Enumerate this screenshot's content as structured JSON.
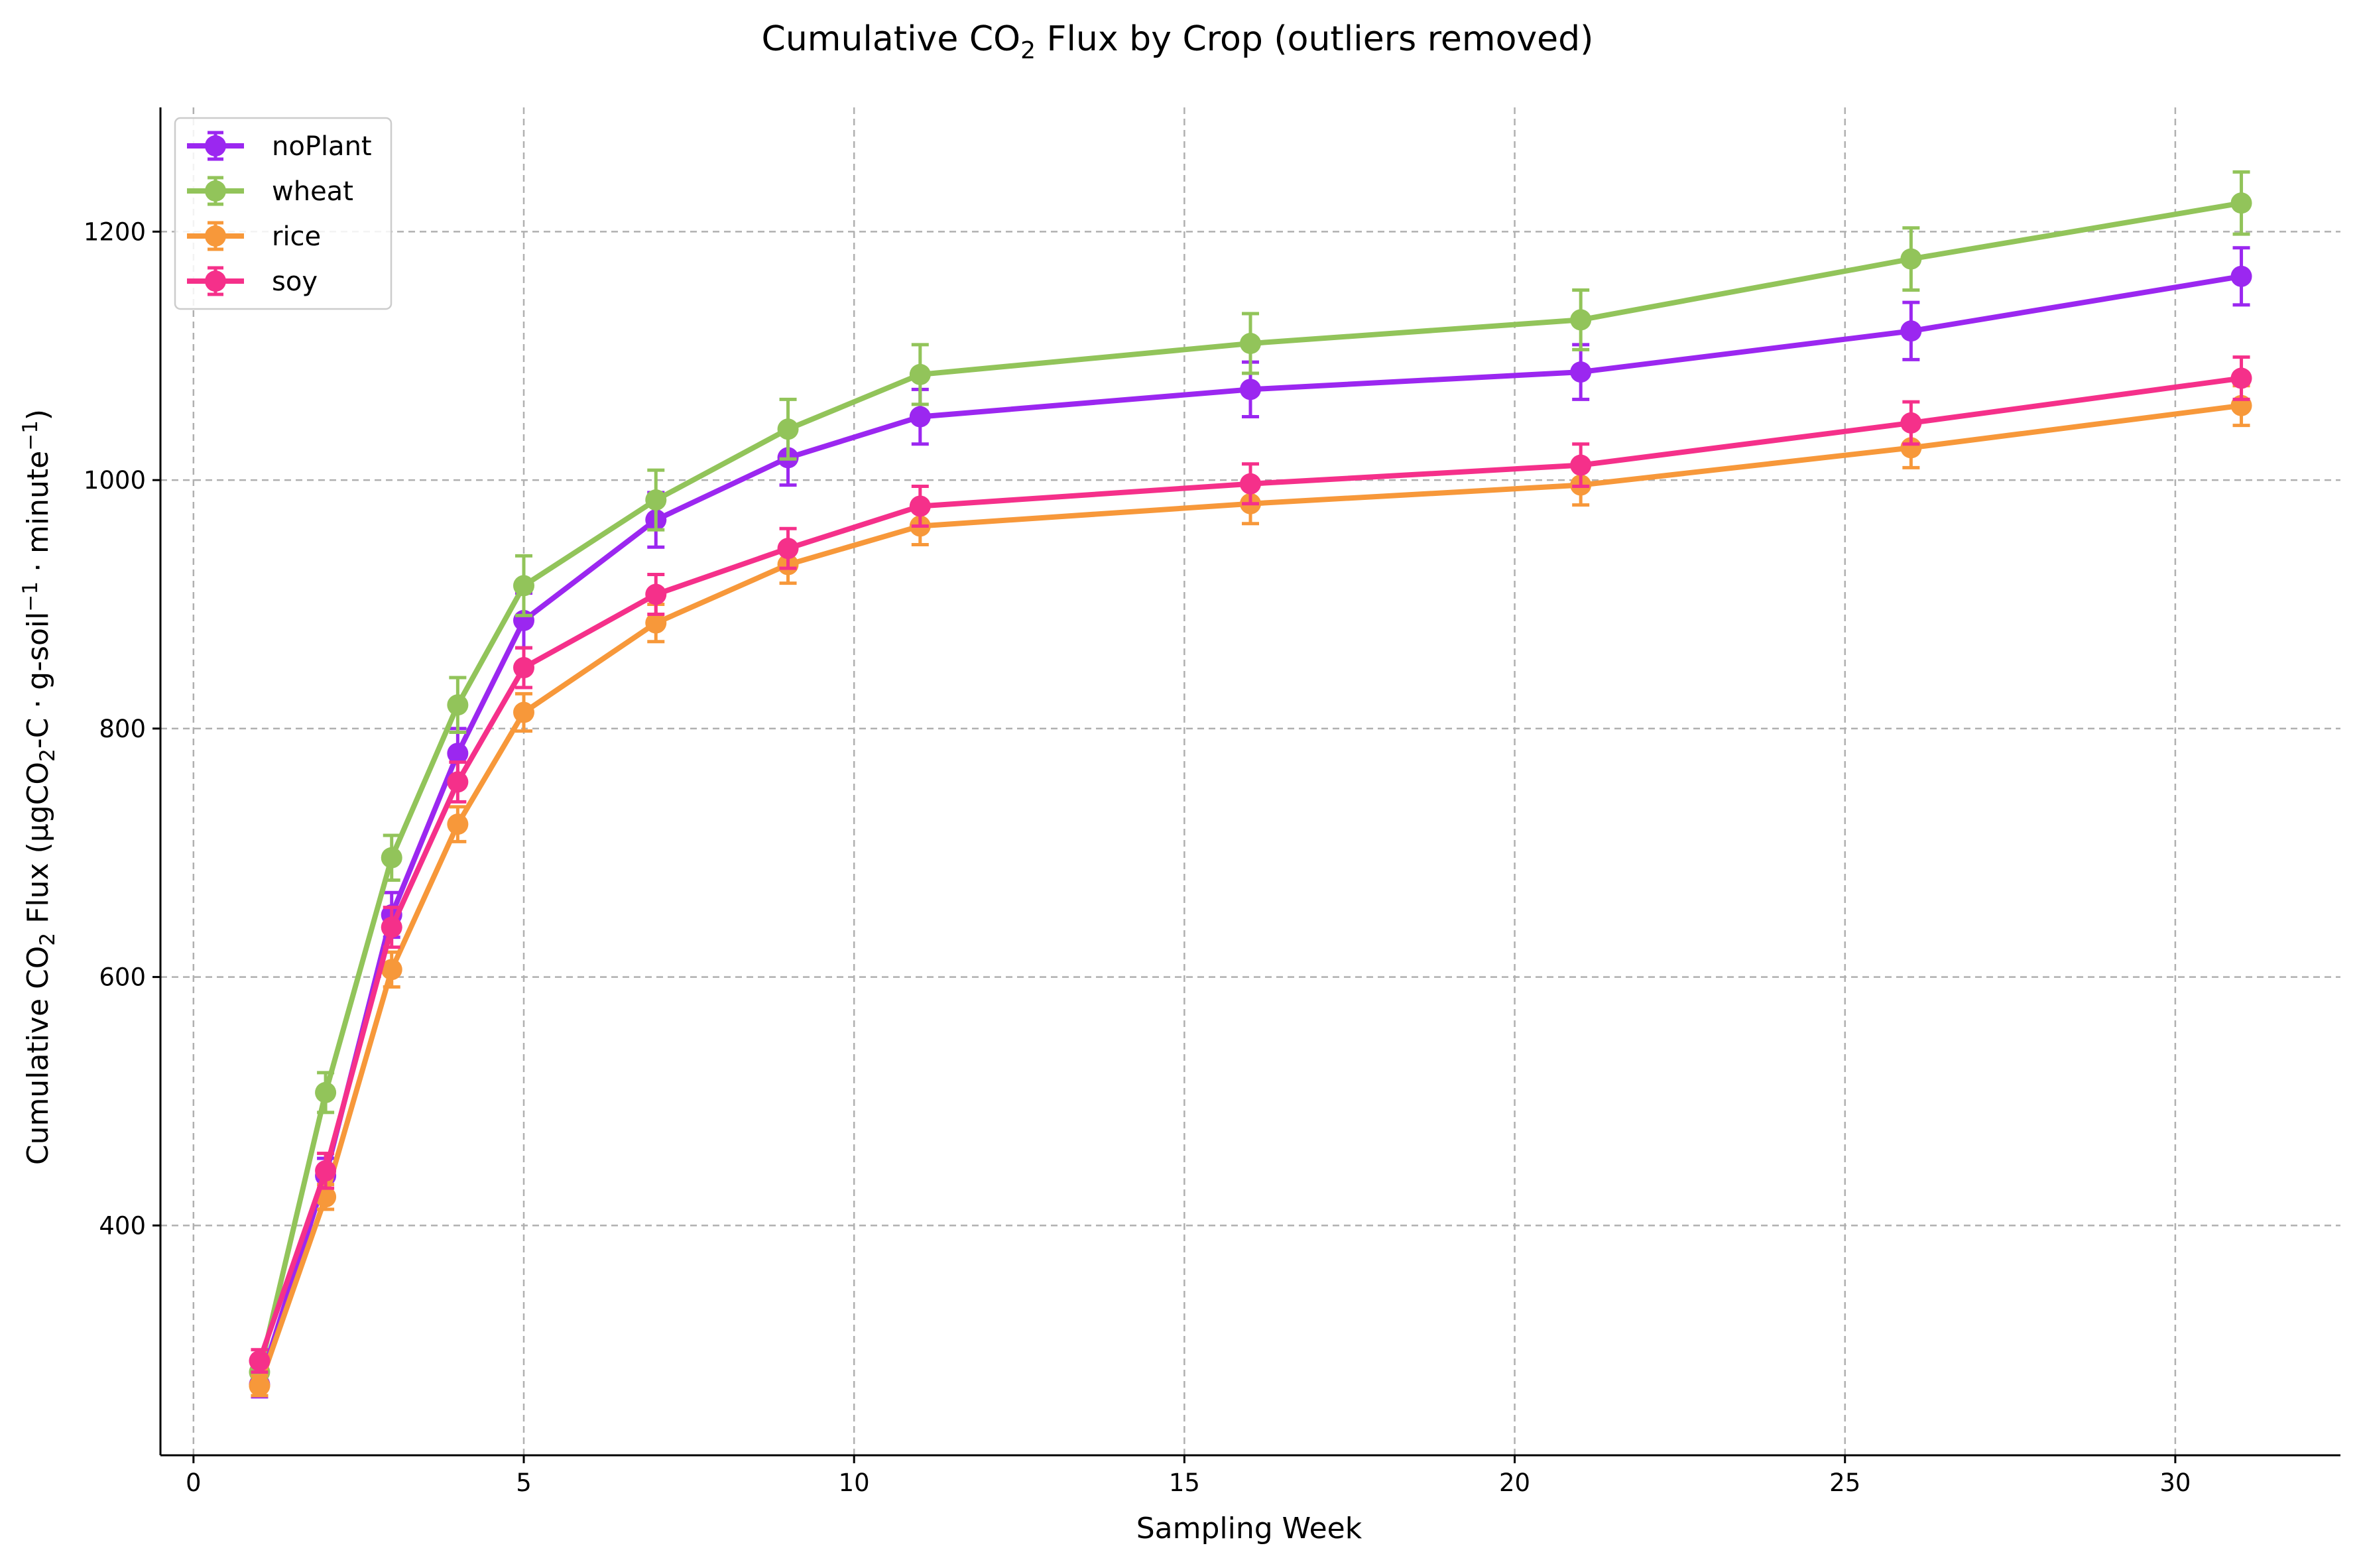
{
  "chart_data": {
    "type": "line",
    "title": "Cumulative CO₂ Flux by Crop (outliers removed)",
    "title_parts": {
      "pre": "Cumulative CO",
      "sub": "2",
      "post": " Flux by Crop (outliers removed)"
    },
    "xlabel": "Sampling Week",
    "ylabel": "Cumulative CO₂ Flux (μgCO₂-C · g-soil⁻¹ · minute⁻¹)",
    "ylabel_parts": {
      "a": "Cumulative CO",
      "b": "2",
      "c": " Flux (μgCO",
      "d": "2",
      "e": "-C · g-soil",
      "f": "−1",
      "g": " · minute",
      "h": "−1",
      "i": ")"
    },
    "xlim": [
      -0.5,
      32.5
    ],
    "ylim": [
      215,
      1300
    ],
    "xticks": [
      0,
      5,
      10,
      15,
      20,
      25,
      30
    ],
    "yticks": [
      400,
      600,
      800,
      1000,
      1200
    ],
    "grid": true,
    "legend_position": "top-left",
    "x": [
      1,
      2,
      3,
      4,
      5,
      7,
      9,
      11,
      16,
      21,
      26,
      31
    ],
    "series": [
      {
        "name": "noPlant",
        "color": "#9b27f0",
        "values": [
          272,
          440,
          650,
          780,
          887,
          968,
          1018,
          1051,
          1073,
          1087,
          1120,
          1164
        ],
        "errors": [
          10,
          14,
          18,
          20,
          22,
          22,
          22,
          22,
          22,
          22,
          23,
          23
        ]
      },
      {
        "name": "wheat",
        "color": "#92c45a",
        "values": [
          282,
          507,
          696,
          819,
          915,
          984,
          1041,
          1085,
          1110,
          1129,
          1178,
          1223
        ],
        "errors": [
          10,
          16,
          18,
          22,
          24,
          24,
          24,
          24,
          24,
          24,
          25,
          25
        ]
      },
      {
        "name": "rice",
        "color": "#f7983a",
        "values": [
          271,
          423,
          606,
          723,
          813,
          885,
          932,
          963,
          981,
          996,
          1026,
          1060
        ],
        "errors": [
          8,
          10,
          14,
          14,
          15,
          15,
          15,
          15,
          16,
          16,
          16,
          16
        ]
      },
      {
        "name": "soy",
        "color": "#f5308a",
        "values": [
          291,
          444,
          640,
          757,
          849,
          908,
          945,
          979,
          997,
          1012,
          1046,
          1082
        ],
        "errors": [
          9,
          14,
          16,
          16,
          16,
          16,
          16,
          16,
          16,
          17,
          17,
          17
        ]
      }
    ]
  }
}
